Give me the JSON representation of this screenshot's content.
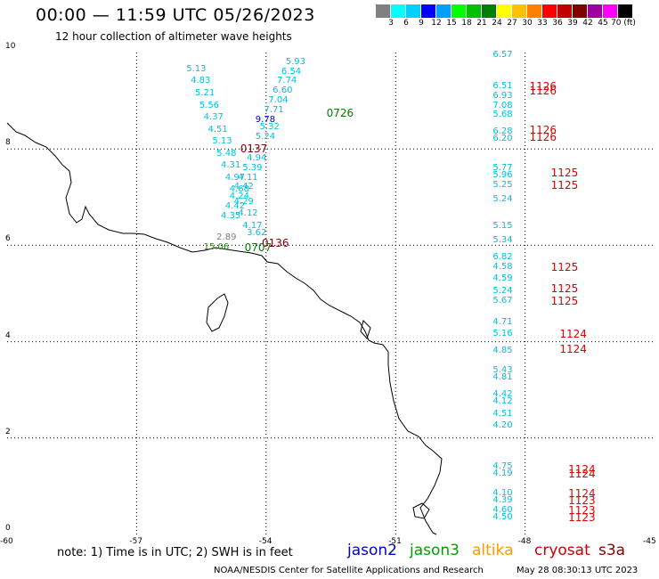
{
  "header": {
    "title": "00:00 — 11:59 UTC 05/26/2023",
    "subtitle": "12 hour collection of altimeter wave heights"
  },
  "colorbar": {
    "colors": [
      "#808080",
      "#00ffff",
      "#00d0ff",
      "#0000ff",
      "#00a0ff",
      "#00ff00",
      "#00c000",
      "#008000",
      "#ffff00",
      "#ffc000",
      "#ff8000",
      "#ff0000",
      "#c00000",
      "#800000",
      "#a000a0",
      "#ff00ff",
      "#000000"
    ],
    "labels": [
      "3",
      "6",
      "9",
      "12",
      "15",
      "18",
      "21",
      "24",
      "27",
      "30",
      "33",
      "36",
      "39",
      "42",
      "45",
      "70 (ft)"
    ]
  },
  "axes": {
    "x_ticks": [
      "-60",
      "-57",
      "-54",
      "-51",
      "-48",
      "-45"
    ],
    "y_ticks": [
      "0",
      "2",
      "4",
      "6",
      "8",
      "10"
    ],
    "lon_range": [
      -60,
      -45
    ],
    "lat_range": [
      0,
      10
    ]
  },
  "tracks": [
    {
      "satellite": "jason3",
      "color": "#00c0e0",
      "points": [
        {
          "lon": -53.3,
          "lat": 9.8,
          "v": "5.93"
        },
        {
          "lon": -53.4,
          "lat": 9.6,
          "v": "6.54"
        },
        {
          "lon": -53.5,
          "lat": 9.4,
          "v": "7.74"
        },
        {
          "lon": -53.6,
          "lat": 9.2,
          "v": "6.60"
        },
        {
          "lon": -53.7,
          "lat": 9.0,
          "v": "7.04"
        },
        {
          "lon": -53.8,
          "lat": 8.8,
          "v": "7.71"
        },
        {
          "lon": -53.9,
          "lat": 8.45,
          "v": "5.32"
        },
        {
          "lon": -54.0,
          "lat": 8.25,
          "v": "5.24"
        },
        {
          "lon": -54.2,
          "lat": 7.8,
          "v": "4.94"
        },
        {
          "lon": -54.3,
          "lat": 7.6,
          "v": "5.39"
        },
        {
          "lon": -54.4,
          "lat": 7.4,
          "v": "4.11"
        },
        {
          "lon": -54.5,
          "lat": 7.2,
          "v": "4.42"
        },
        {
          "lon": -54.6,
          "lat": 7.0,
          "v": "4.24"
        },
        {
          "lon": -54.7,
          "lat": 6.8,
          "v": "4.42"
        },
        {
          "lon": -54.8,
          "lat": 6.6,
          "v": "4.35"
        },
        {
          "lon": -55.6,
          "lat": 9.65,
          "v": "5.13"
        },
        {
          "lon": -55.5,
          "lat": 9.4,
          "v": "4.83"
        },
        {
          "lon": -55.4,
          "lat": 9.15,
          "v": "5.21"
        },
        {
          "lon": -55.3,
          "lat": 8.9,
          "v": "5.56"
        },
        {
          "lon": -55.2,
          "lat": 8.65,
          "v": "4.37"
        },
        {
          "lon": -55.1,
          "lat": 8.4,
          "v": "4.51"
        },
        {
          "lon": -55.0,
          "lat": 8.15,
          "v": "5.13"
        },
        {
          "lon": -54.9,
          "lat": 7.9,
          "v": "5.48"
        },
        {
          "lon": -54.8,
          "lat": 7.65,
          "v": "4.31"
        },
        {
          "lon": -54.7,
          "lat": 7.4,
          "v": "4.97"
        },
        {
          "lon": -54.6,
          "lat": 7.15,
          "v": "4.68"
        },
        {
          "lon": -54.5,
          "lat": 6.9,
          "v": "4.29"
        },
        {
          "lon": -54.4,
          "lat": 6.65,
          "v": "4.12"
        },
        {
          "lon": -54.3,
          "lat": 6.4,
          "v": "4.17"
        },
        {
          "lon": -54.2,
          "lat": 6.25,
          "v": "3.62"
        },
        {
          "lon": -48.5,
          "lat": 9.95,
          "v": "6.57"
        },
        {
          "lon": -48.5,
          "lat": 9.3,
          "v": "6.51"
        },
        {
          "lon": -48.5,
          "lat": 9.1,
          "v": "6.93"
        },
        {
          "lon": -48.5,
          "lat": 8.9,
          "v": "7.08"
        },
        {
          "lon": -48.5,
          "lat": 8.7,
          "v": "5.68"
        },
        {
          "lon": -48.5,
          "lat": 8.35,
          "v": "6.28"
        },
        {
          "lon": -48.5,
          "lat": 8.2,
          "v": "6.20"
        },
        {
          "lon": -48.5,
          "lat": 7.6,
          "v": "5.77"
        },
        {
          "lon": -48.5,
          "lat": 7.45,
          "v": "5.96"
        },
        {
          "lon": -48.5,
          "lat": 7.25,
          "v": "5.25"
        },
        {
          "lon": -48.5,
          "lat": 6.95,
          "v": "5.24"
        },
        {
          "lon": -48.5,
          "lat": 6.4,
          "v": "5.15"
        },
        {
          "lon": -48.5,
          "lat": 6.1,
          "v": "5.34"
        },
        {
          "lon": -48.5,
          "lat": 5.75,
          "v": "6.82"
        },
        {
          "lon": -48.5,
          "lat": 5.55,
          "v": "4.58"
        },
        {
          "lon": -48.5,
          "lat": 5.3,
          "v": "4.59"
        },
        {
          "lon": -48.5,
          "lat": 5.05,
          "v": "5.24"
        },
        {
          "lon": -48.5,
          "lat": 4.85,
          "v": "5.67"
        },
        {
          "lon": -48.5,
          "lat": 4.4,
          "v": "4.71"
        },
        {
          "lon": -48.5,
          "lat": 4.15,
          "v": "5.16"
        },
        {
          "lon": -48.5,
          "lat": 3.8,
          "v": "4.85"
        },
        {
          "lon": -48.5,
          "lat": 3.4,
          "v": "5.43"
        },
        {
          "lon": -48.5,
          "lat": 3.25,
          "v": "4.81"
        },
        {
          "lon": -48.5,
          "lat": 2.9,
          "v": "4.42"
        },
        {
          "lon": -48.5,
          "lat": 2.75,
          "v": "4.12"
        },
        {
          "lon": -48.5,
          "lat": 2.5,
          "v": "4.51"
        },
        {
          "lon": -48.5,
          "lat": 2.25,
          "v": "4.20"
        },
        {
          "lon": -48.5,
          "lat": 1.4,
          "v": "4.75"
        },
        {
          "lon": -48.5,
          "lat": 1.25,
          "v": "4.19"
        },
        {
          "lon": -48.5,
          "lat": 0.85,
          "v": "4.10"
        },
        {
          "lon": -48.5,
          "lat": 0.7,
          "v": "4.39"
        },
        {
          "lon": -48.5,
          "lat": 0.5,
          "v": "4.60"
        },
        {
          "lon": -48.5,
          "lat": 0.35,
          "v": "4.50"
        }
      ]
    },
    {
      "satellite": "jason2",
      "color": "#0000c0",
      "points": [
        {
          "lon": -54.0,
          "lat": 8.6,
          "v": "9.78"
        }
      ]
    },
    {
      "satellite": "altika",
      "color": "#808080",
      "points": [
        {
          "lon": -54.9,
          "lat": 6.15,
          "v": "2.89"
        }
      ]
    },
    {
      "satellite": "jason3-coastal",
      "color": "#00a000",
      "points": [
        {
          "lon": -55.2,
          "lat": 5.95,
          "v": "15.06"
        }
      ]
    }
  ],
  "time_labels": [
    {
      "lon": -52.6,
      "lat": 8.75,
      "text": "0726",
      "color": "#008000"
    },
    {
      "lon": -54.6,
      "lat": 8.0,
      "text": "0137",
      "color": "#800000"
    },
    {
      "lon": -54.1,
      "lat": 6.05,
      "text": "0136",
      "color": "#800000"
    },
    {
      "lon": -54.5,
      "lat": 5.95,
      "text": "0707",
      "color": "#008000"
    },
    {
      "lon": -47.9,
      "lat": 9.3,
      "text": "1126",
      "color": "#e00000"
    },
    {
      "lon": -47.9,
      "lat": 9.2,
      "text": "1126",
      "color": "#e00000"
    },
    {
      "lon": -47.9,
      "lat": 8.4,
      "text": "1126",
      "color": "#e00000"
    },
    {
      "lon": -47.9,
      "lat": 8.25,
      "text": "1126",
      "color": "#e00000"
    },
    {
      "lon": -47.4,
      "lat": 7.5,
      "text": "1125",
      "color": "#e00000"
    },
    {
      "lon": -47.4,
      "lat": 7.25,
      "text": "1125",
      "color": "#e00000"
    },
    {
      "lon": -47.4,
      "lat": 5.55,
      "text": "1125",
      "color": "#e00000"
    },
    {
      "lon": -47.4,
      "lat": 5.1,
      "text": "1125",
      "color": "#e00000"
    },
    {
      "lon": -47.4,
      "lat": 4.85,
      "text": "1125",
      "color": "#e00000"
    },
    {
      "lon": -47.2,
      "lat": 4.15,
      "text": "1124",
      "color": "#e00000"
    },
    {
      "lon": -47.2,
      "lat": 3.85,
      "text": "1124",
      "color": "#e00000"
    },
    {
      "lon": -47.0,
      "lat": 1.35,
      "text": "1124",
      "color": "#e00000"
    },
    {
      "lon": -47.0,
      "lat": 1.25,
      "text": "1124",
      "color": "#e00000"
    },
    {
      "lon": -47.0,
      "lat": 0.85,
      "text": "1124",
      "color": "#e00000"
    },
    {
      "lon": -47.0,
      "lat": 0.7,
      "text": "1123",
      "color": "#e00000"
    },
    {
      "lon": -47.0,
      "lat": 0.5,
      "text": "1123",
      "color": "#e00000"
    },
    {
      "lon": -47.0,
      "lat": 0.35,
      "text": "1123",
      "color": "#e00000"
    }
  ],
  "note": "note: 1) Time is in UTC; 2) SWH is in feet",
  "legend": [
    {
      "label": "jason2",
      "color": "#0000cc"
    },
    {
      "label": "jason3",
      "color": "#00a000"
    },
    {
      "label": "altika",
      "color": "#ff9900"
    },
    {
      "label": "cryosat",
      "color": "#cc0000"
    },
    {
      "label": "s3a",
      "color": "#880000"
    }
  ],
  "footer": {
    "left": "NOAA/NESDIS Center for Satellite Applications and Research",
    "right": "May 28 08:30:13 UTC 2023"
  }
}
